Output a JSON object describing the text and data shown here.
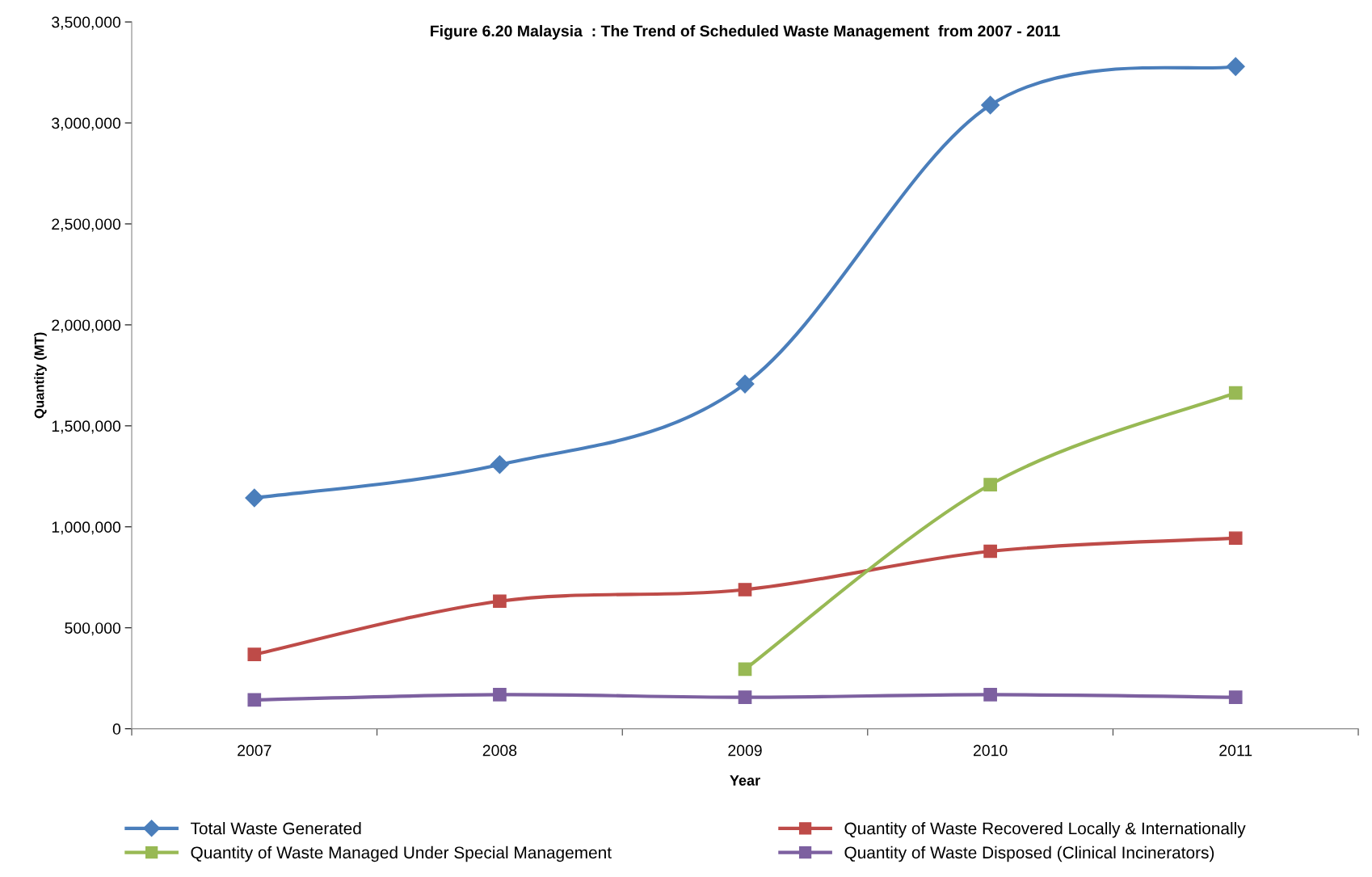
{
  "chart_data": {
    "type": "line",
    "title": "Figure 6.20 Malaysia  : The Trend of Scheduled Waste Management  from 2007 - 2011",
    "xlabel": "Year",
    "ylabel": "Quantity (MT)",
    "categories": [
      "2007",
      "2008",
      "2009",
      "2010",
      "2011"
    ],
    "series": [
      {
        "name": "Total Waste Generated",
        "color": "#4a7ebb",
        "marker": "diamond",
        "values": [
          1143000,
          1308000,
          1707000,
          3088000,
          3279000
        ]
      },
      {
        "name": "Quantity of Waste Recovered Locally & Internationally",
        "color": "#be4b48",
        "marker": "square",
        "values": [
          368000,
          632000,
          689000,
          879000,
          944000
        ]
      },
      {
        "name": "Quantity of Waste Managed Under Special Management",
        "color": "#98b954",
        "marker": "square",
        "values": [
          null,
          null,
          295000,
          1209000,
          1663000
        ]
      },
      {
        "name": "Quantity of Waste Disposed (Clinical Incinerators)",
        "color": "#7d60a0",
        "marker": "square",
        "values": [
          143000,
          169000,
          156000,
          169000,
          156000
        ]
      }
    ],
    "ylim": [
      0,
      3500000
    ],
    "yticks": [
      {
        "value": 0,
        "label": "0"
      },
      {
        "value": 500000,
        "label": "500,000"
      },
      {
        "value": 1000000,
        "label": "1,000,000"
      },
      {
        "value": 1500000,
        "label": "1,500,000"
      },
      {
        "value": 2000000,
        "label": "2,000,000"
      },
      {
        "value": 2500000,
        "label": "2,500,000"
      },
      {
        "value": 3000000,
        "label": "3,000,000"
      },
      {
        "value": 3500000,
        "label": "3,500,000"
      }
    ],
    "grid": false,
    "legend": "bottom",
    "line_style": "solid"
  }
}
